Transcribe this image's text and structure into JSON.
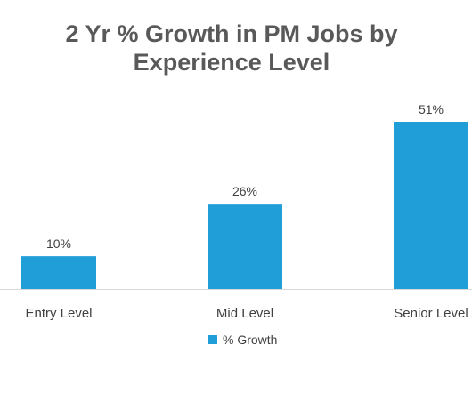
{
  "chart_data": {
    "type": "bar",
    "title": "2 Yr % Growth in PM Jobs by\nExperience Level",
    "categories": [
      "Entry Level",
      "Mid Level",
      "Senior Level"
    ],
    "series": [
      {
        "name": "% Growth",
        "values": [
          10,
          26,
          51
        ],
        "data_labels": [
          "10%",
          "26%",
          "51%"
        ],
        "color": "#1F9ED8"
      }
    ],
    "xlabel": "",
    "ylabel": "",
    "ylim": [
      0,
      51
    ],
    "grid": false,
    "legend": "bottom",
    "baseline_color": "#D9D9D9"
  }
}
